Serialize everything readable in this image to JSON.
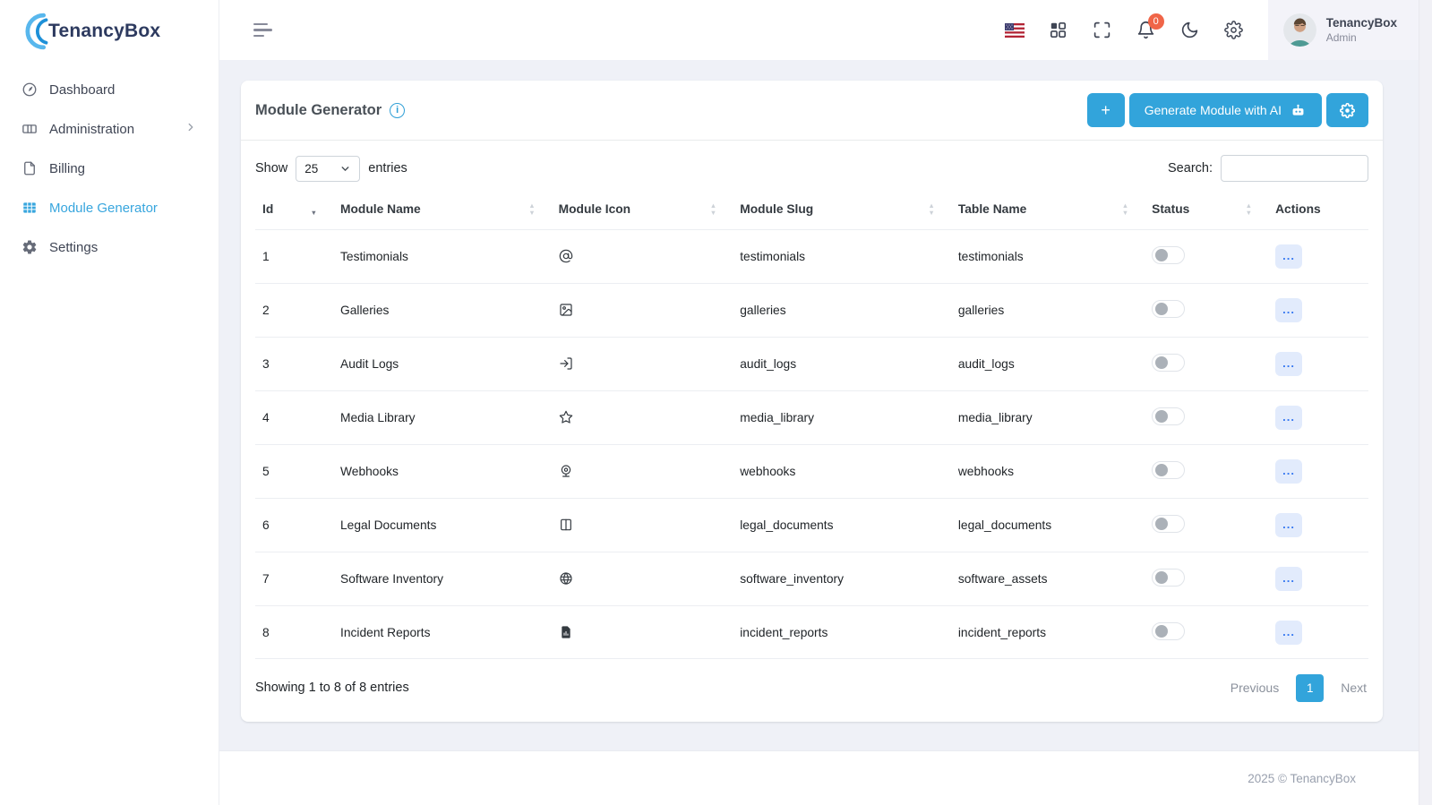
{
  "brand": {
    "name": "TenancyBox",
    "copyright": "2025 © TenancyBox"
  },
  "sidebar": {
    "items": [
      {
        "label": "Dashboard",
        "icon": "gauge",
        "active": false,
        "has_submenu": false
      },
      {
        "label": "Administration",
        "icon": "building",
        "active": false,
        "has_submenu": true
      },
      {
        "label": "Billing",
        "icon": "file",
        "active": false,
        "has_submenu": false
      },
      {
        "label": "Module Generator",
        "icon": "table-grid",
        "active": true,
        "has_submenu": false
      },
      {
        "label": "Settings",
        "icon": "gear-solid",
        "active": false,
        "has_submenu": false
      }
    ]
  },
  "header": {
    "notification_count": "0",
    "user": {
      "name": "TenancyBox",
      "role": "Admin"
    },
    "icons": [
      "us-flag",
      "apps-grid",
      "fullscreen",
      "bell",
      "moon",
      "gear"
    ]
  },
  "page": {
    "title": "Module Generator",
    "toolbar": {
      "add_label": "+",
      "generate_label": "Generate Module with AI"
    },
    "controls": {
      "show_label": "Show",
      "entries_label": "entries",
      "page_size": "25",
      "search_label": "Search:"
    },
    "table": {
      "columns": [
        "Id",
        "Module Name",
        "Module Icon",
        "Module Slug",
        "Table Name",
        "Status",
        "Actions"
      ],
      "rows": [
        {
          "id": "1",
          "name": "Testimonials",
          "icon": "at-sign",
          "slug": "testimonials",
          "table": "testimonials",
          "status": false
        },
        {
          "id": "2",
          "name": "Galleries",
          "icon": "image",
          "slug": "galleries",
          "table": "galleries",
          "status": false
        },
        {
          "id": "3",
          "name": "Audit Logs",
          "icon": "log-in",
          "slug": "audit_logs",
          "table": "audit_logs",
          "status": false
        },
        {
          "id": "4",
          "name": "Media Library",
          "icon": "star",
          "slug": "media_library",
          "table": "media_library",
          "status": false
        },
        {
          "id": "5",
          "name": "Webhooks",
          "icon": "webcam",
          "slug": "webhooks",
          "table": "webhooks",
          "status": false
        },
        {
          "id": "6",
          "name": "Legal Documents",
          "icon": "book",
          "slug": "legal_documents",
          "table": "legal_documents",
          "status": false
        },
        {
          "id": "7",
          "name": "Software Inventory",
          "icon": "globe",
          "slug": "software_inventory",
          "table": "software_assets",
          "status": false
        },
        {
          "id": "8",
          "name": "Incident Reports",
          "icon": "file-chart",
          "slug": "incident_reports",
          "table": "incident_reports",
          "status": false
        }
      ]
    },
    "summary": "Showing 1 to 8 of 8 entries",
    "pagination": {
      "previous": "Previous",
      "current_page": "1",
      "next": "Next"
    }
  },
  "colors": {
    "accent": "#32a4db",
    "badge_danger": "#f06548",
    "actions_blue": "#3577f1",
    "page_bg": "#eff1f7"
  }
}
